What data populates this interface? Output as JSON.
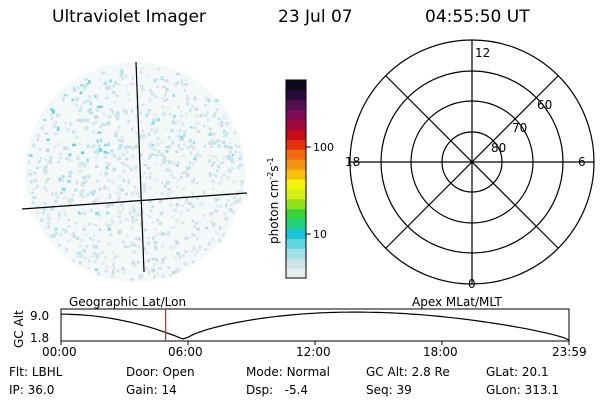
{
  "header": {
    "instrument": "Ultraviolet Imager",
    "date": "23 Jul 07",
    "time": "04:55:50 UT"
  },
  "colorbar": {
    "unit": "photon cm",
    "unit_exp1": "-2",
    "unit_s": "s",
    "unit_exp2": "-1",
    "ticks": [
      {
        "label": "100",
        "value": 100
      },
      {
        "label": "10",
        "value": 10
      }
    ],
    "colors": [
      "#e6eef0",
      "#cfe4e8",
      "#9fe1e6",
      "#5fd6de",
      "#19c3d6",
      "#20d27c",
      "#38d23a",
      "#8fe01a",
      "#d8f01a",
      "#f4f40a",
      "#f6c00c",
      "#f59410",
      "#f06a10",
      "#e03010",
      "#c80a18",
      "#a0083c",
      "#800a5a",
      "#541050",
      "#280a3c",
      "#0a0a1a"
    ]
  },
  "polar_plot": {
    "local_times": [
      "12",
      "18",
      "6",
      "0"
    ],
    "lat_rings": [
      "60",
      "70",
      "80"
    ]
  },
  "timeline": {
    "left_label": "Geographic Lat/Lon",
    "right_label": "Apex MLat/MLT",
    "axis_title": "GC Alt",
    "y_max_label": "9.0",
    "y_min_label": "1.8",
    "x_ticks": [
      "00:00",
      "06:00",
      "12:00",
      "18:00",
      "23:59"
    ],
    "current_time_fraction": 0.206
  },
  "info": {
    "flt_label": "Flt:",
    "flt_value": "LBHL",
    "ip_label": "IP:",
    "ip_value": "36.0",
    "door_label": "Door:",
    "door_value": "Open",
    "gain_label": "Gain:",
    "gain_value": "14",
    "mode_label": "Mode:",
    "mode_value": "Normal",
    "dsp_label": "Dsp:",
    "dsp_value": "-5.4",
    "gcalt_label": "GC Alt:",
    "gcalt_value": "2.8 Re",
    "seq_label": "Seq:",
    "seq_value": "39",
    "glat_label": "GLat:",
    "glat_value": "20.1",
    "glon_label": "GLon:",
    "glon_value": "313.1"
  }
}
